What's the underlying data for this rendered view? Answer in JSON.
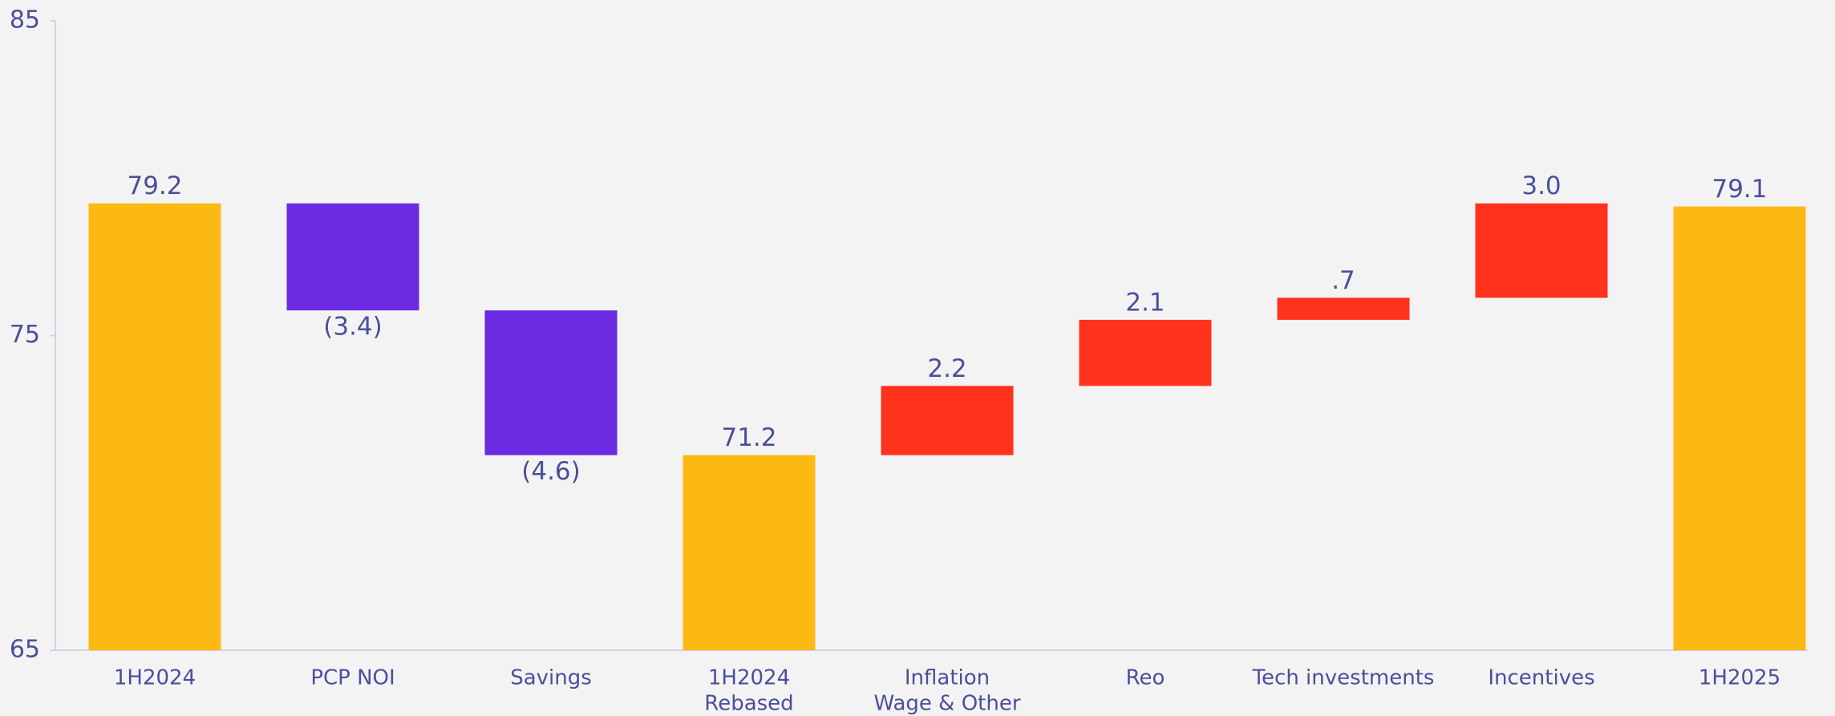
{
  "chart_data": {
    "type": "waterfall",
    "categories": [
      [
        "1H2024"
      ],
      [
        "PCP NOI"
      ],
      [
        "Savings"
      ],
      [
        "1H2024",
        "Rebased"
      ],
      [
        "Inflation",
        "Wage & Other"
      ],
      [
        "Reo"
      ],
      [
        "Tech investments"
      ],
      [
        "Incentives"
      ],
      [
        "1H2025"
      ]
    ],
    "values": [
      79.2,
      -3.4,
      -4.6,
      71.2,
      2.2,
      2.1,
      0.7,
      3.0,
      79.1
    ],
    "value_labels": [
      "79.2",
      "(3.4)",
      "(4.6)",
      "71.2",
      "2.2",
      "2.1",
      ".7",
      "3.0",
      "79.1"
    ],
    "measure": [
      "total",
      "relative",
      "relative",
      "total",
      "relative",
      "relative",
      "relative",
      "relative",
      "total"
    ],
    "colors": [
      "#FDB913",
      "#6A2BE2",
      "#6A2BE2",
      "#FDB913",
      "#FF321E",
      "#FF321E",
      "#FF321E",
      "#FF321E",
      "#FDB913"
    ],
    "ylim": [
      65,
      85
    ],
    "yticks": [
      65,
      75,
      85
    ]
  }
}
